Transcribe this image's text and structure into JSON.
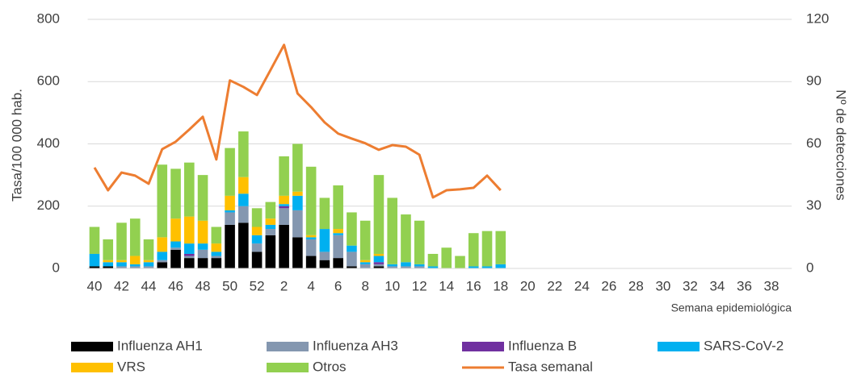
{
  "chart_data": {
    "type": "bar-line",
    "categories": [
      40,
      null,
      42,
      null,
      44,
      null,
      46,
      null,
      48,
      null,
      50,
      null,
      52,
      null,
      2,
      null,
      4,
      null,
      6,
      null,
      8,
      null,
      10,
      null,
      12,
      null,
      14,
      null,
      16,
      null,
      18,
      null,
      20,
      null,
      22,
      null,
      24,
      null,
      26,
      null,
      28,
      null,
      30,
      null,
      32,
      null,
      34,
      null,
      36,
      null,
      38,
      null
    ],
    "x_label": "Semana epidemiológica",
    "y_label": "Tasa/100 000 hab.",
    "y2_label": "Nº de detecciones",
    "ylim": [
      0,
      800
    ],
    "yticks": [
      0,
      200,
      400,
      600,
      800
    ],
    "y2lim": [
      0,
      120
    ],
    "y2ticks": [
      0,
      30,
      60,
      90,
      120
    ],
    "grid": true,
    "legend": "bottom",
    "series": [
      {
        "name": "Influenza AH1",
        "type": "bar",
        "axis": "y2",
        "color": "#000000",
        "values": [
          1,
          1,
          0,
          0,
          0,
          3,
          9,
          5,
          5,
          5,
          21,
          22,
          8,
          16,
          21,
          15,
          6,
          4,
          5,
          1,
          0,
          1,
          0,
          0,
          0,
          0,
          0,
          0,
          0,
          0,
          0,
          null,
          null,
          null,
          null,
          null,
          null,
          null,
          null,
          null,
          null,
          null,
          null,
          null,
          null,
          null,
          null,
          null,
          null,
          null,
          null,
          null
        ]
      },
      {
        "name": "Influenza AH3",
        "type": "bar",
        "axis": "y2",
        "color": "#8497b0",
        "values": [
          0,
          0,
          1,
          1,
          1,
          1,
          1,
          1,
          4,
          1,
          6,
          8,
          4,
          3,
          8,
          13,
          8,
          4,
          11,
          7,
          2,
          1,
          1,
          1,
          1,
          0,
          0,
          0,
          0,
          0,
          0,
          null,
          null,
          null,
          null,
          null,
          null,
          null,
          null,
          null,
          null,
          null,
          null,
          null,
          null,
          null,
          null,
          null,
          null,
          null,
          null,
          null
        ]
      },
      {
        "name": "Influenza B",
        "type": "bar",
        "axis": "y2",
        "color": "#7030a0",
        "values": [
          0,
          0,
          0,
          0,
          0,
          0,
          0,
          1,
          0,
          0,
          0,
          0,
          0,
          0,
          1,
          0,
          0,
          0,
          0,
          0,
          0,
          1,
          0,
          0,
          0,
          0,
          0,
          0,
          0,
          0,
          0,
          null,
          null,
          null,
          null,
          null,
          null,
          null,
          null,
          null,
          null,
          null,
          null,
          null,
          null,
          null,
          null,
          null,
          null,
          null,
          null,
          null
        ]
      },
      {
        "name": "SARS-CoV-2",
        "type": "bar",
        "axis": "y2",
        "color": "#00b0f0",
        "values": [
          6,
          2,
          2,
          1,
          2,
          4,
          3,
          5,
          3,
          2,
          1,
          6,
          4,
          2,
          1,
          7,
          1,
          11,
          1,
          3,
          1,
          3,
          1,
          2,
          1,
          1,
          0,
          0,
          1,
          1,
          2,
          null,
          null,
          null,
          null,
          null,
          null,
          null,
          null,
          null,
          null,
          null,
          null,
          null,
          null,
          null,
          null,
          null,
          null,
          null,
          null,
          null
        ]
      },
      {
        "name": "VRS",
        "type": "bar",
        "axis": "y2",
        "color": "#ffc000",
        "values": [
          0,
          1,
          1,
          4,
          1,
          7,
          11,
          13,
          11,
          4,
          7,
          8,
          4,
          3,
          4,
          2,
          1,
          0,
          2,
          0,
          1,
          1,
          0,
          0,
          0,
          0,
          0,
          0,
          0,
          0,
          0,
          null,
          null,
          null,
          null,
          null,
          null,
          null,
          null,
          null,
          null,
          null,
          null,
          null,
          null,
          null,
          null,
          null,
          null,
          null,
          null,
          null
        ]
      },
      {
        "name": "Otros",
        "type": "bar",
        "axis": "y2",
        "color": "#92d050",
        "values": [
          13,
          10,
          18,
          18,
          10,
          35,
          24,
          26,
          22,
          8,
          23,
          22,
          9,
          8,
          19,
          23,
          33,
          15,
          21,
          16,
          19,
          38,
          32,
          23,
          21,
          6,
          10,
          6,
          16,
          17,
          16,
          null,
          null,
          null,
          null,
          null,
          null,
          null,
          null,
          null,
          null,
          null,
          null,
          null,
          null,
          null,
          null,
          null,
          null,
          null,
          null,
          null
        ]
      },
      {
        "name": "Tasa semanal",
        "type": "line",
        "axis": "y",
        "color": "#ed7d31",
        "values": [
          324,
          251,
          308,
          298,
          272,
          383,
          407,
          446,
          487,
          350,
          604,
          583,
          557,
          637,
          718,
          562,
          518,
          469,
          433,
          417,
          402,
          381,
          396,
          391,
          365,
          228,
          251,
          254,
          259,
          298,
          251,
          null,
          null,
          null,
          null,
          null,
          null,
          null,
          null,
          null,
          null,
          null,
          null,
          null,
          null,
          null,
          null,
          null,
          null,
          null,
          null,
          null
        ]
      }
    ]
  }
}
